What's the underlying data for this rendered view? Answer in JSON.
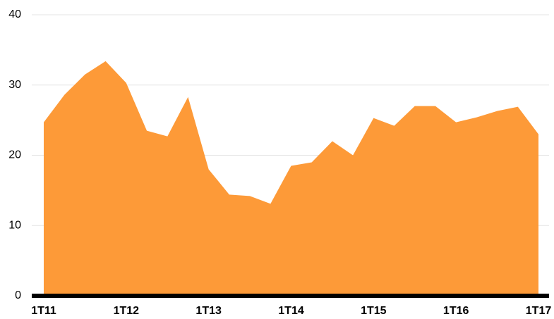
{
  "chart_data": {
    "type": "area",
    "categories": [
      "1T11",
      null,
      null,
      null,
      "1T12",
      null,
      null,
      null,
      "1T13",
      null,
      null,
      null,
      "1T14",
      null,
      null,
      null,
      "1T15",
      null,
      null,
      null,
      "1T16",
      null,
      null,
      null,
      "1T17"
    ],
    "values": [
      24.7,
      28.6,
      31.5,
      33.4,
      30.3,
      23.5,
      22.7,
      28.3,
      18.0,
      14.4,
      14.2,
      13.1,
      18.5,
      19.0,
      22.0,
      20.0,
      25.3,
      24.2,
      27.0,
      27.0,
      24.7,
      25.4,
      26.3,
      26.9,
      23.0
    ],
    "color": "#fd9a38",
    "ylim": [
      0,
      40
    ],
    "yticks": [
      0,
      10,
      20,
      30,
      40
    ],
    "grid": true
  }
}
